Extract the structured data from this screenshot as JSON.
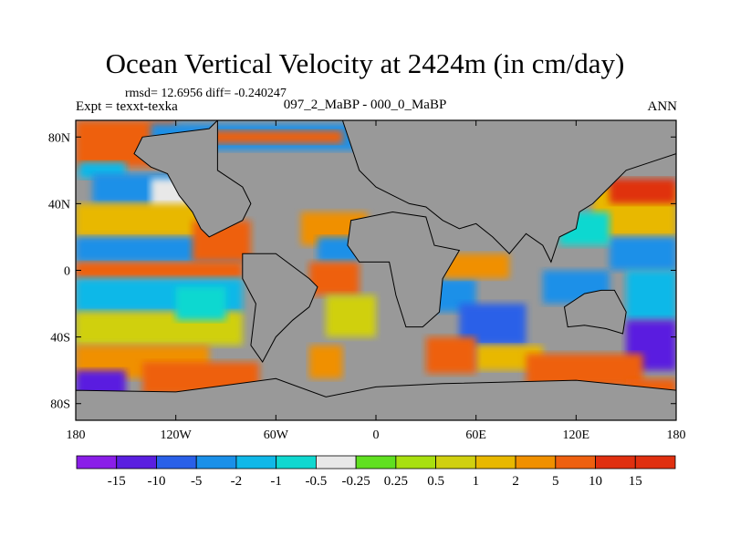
{
  "header": {
    "title": "Ocean Vertical Velocity at 2424m (in cm/day)",
    "stats": "rmsd= 12.6956 diff= -0.240247",
    "expt": "Expt = texxt-texka",
    "case": "097_2_MaBP - 000_0_MaBP",
    "season": "ANN"
  },
  "chart_data": {
    "type": "heatmap",
    "projection": "cylindrical-equidistant",
    "lon_range": [
      -180,
      180
    ],
    "lat_range": [
      -90,
      90
    ],
    "x_ticks": [
      {
        "lon": -180,
        "label": "180"
      },
      {
        "lon": -120,
        "label": "120W"
      },
      {
        "lon": -60,
        "label": "60W"
      },
      {
        "lon": 0,
        "label": "0"
      },
      {
        "lon": 60,
        "label": "60E"
      },
      {
        "lon": 120,
        "label": "120E"
      },
      {
        "lon": 180,
        "label": "180"
      }
    ],
    "y_ticks": [
      {
        "lat": 80,
        "label": "80N"
      },
      {
        "lat": 40,
        "label": "40N"
      },
      {
        "lat": 0,
        "label": "0"
      },
      {
        "lat": -40,
        "label": "40S"
      },
      {
        "lat": -80,
        "label": "80S"
      }
    ],
    "land_color": "#999999",
    "colorbar": {
      "colors": [
        "#8a1ee8",
        "#5a1fe0",
        "#2a60e8",
        "#1a90e8",
        "#10b8e8",
        "#10d8d0",
        "#e8e8e8",
        "#60e020",
        "#a8e010",
        "#d0d010",
        "#e8b800",
        "#f09000",
        "#ee6010",
        "#e03010"
      ],
      "labels": [
        "-15",
        "-10",
        "-5",
        "-2",
        "-1",
        "-0.5",
        "-0.25",
        "0.25",
        "0.5",
        "1",
        "2",
        "5",
        "10",
        "15"
      ]
    }
  }
}
